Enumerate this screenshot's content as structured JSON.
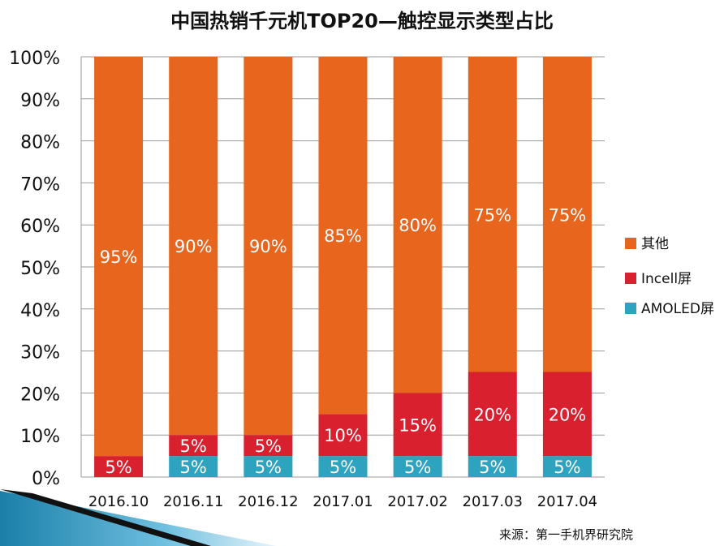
{
  "chart_data": {
    "type": "bar",
    "stacked": true,
    "title": "中国热销千元机TOP20—触控显示类型占比",
    "categories": [
      "2016.10",
      "2016.11",
      "2016.12",
      "2017.01",
      "2017.02",
      "2017.03",
      "2017.04"
    ],
    "series": [
      {
        "name": "AMOLED屏",
        "color": "#2EA3C0",
        "values": [
          0,
          5,
          5,
          5,
          5,
          5,
          5
        ]
      },
      {
        "name": "Incell屏",
        "color": "#D9202E",
        "values": [
          5,
          5,
          5,
          10,
          15,
          20,
          20
        ]
      },
      {
        "name": "其他",
        "color": "#E8651E",
        "values": [
          95,
          90,
          90,
          85,
          80,
          75,
          75
        ]
      }
    ],
    "ylim": [
      0,
      100
    ],
    "yticks": [
      "0%",
      "10%",
      "20%",
      "30%",
      "40%",
      "50%",
      "60%",
      "70%",
      "80%",
      "90%",
      "100%"
    ],
    "grid": true,
    "legend_position": "right",
    "xlabel": "",
    "ylabel": ""
  },
  "source": "来源：第一手机界研究院"
}
